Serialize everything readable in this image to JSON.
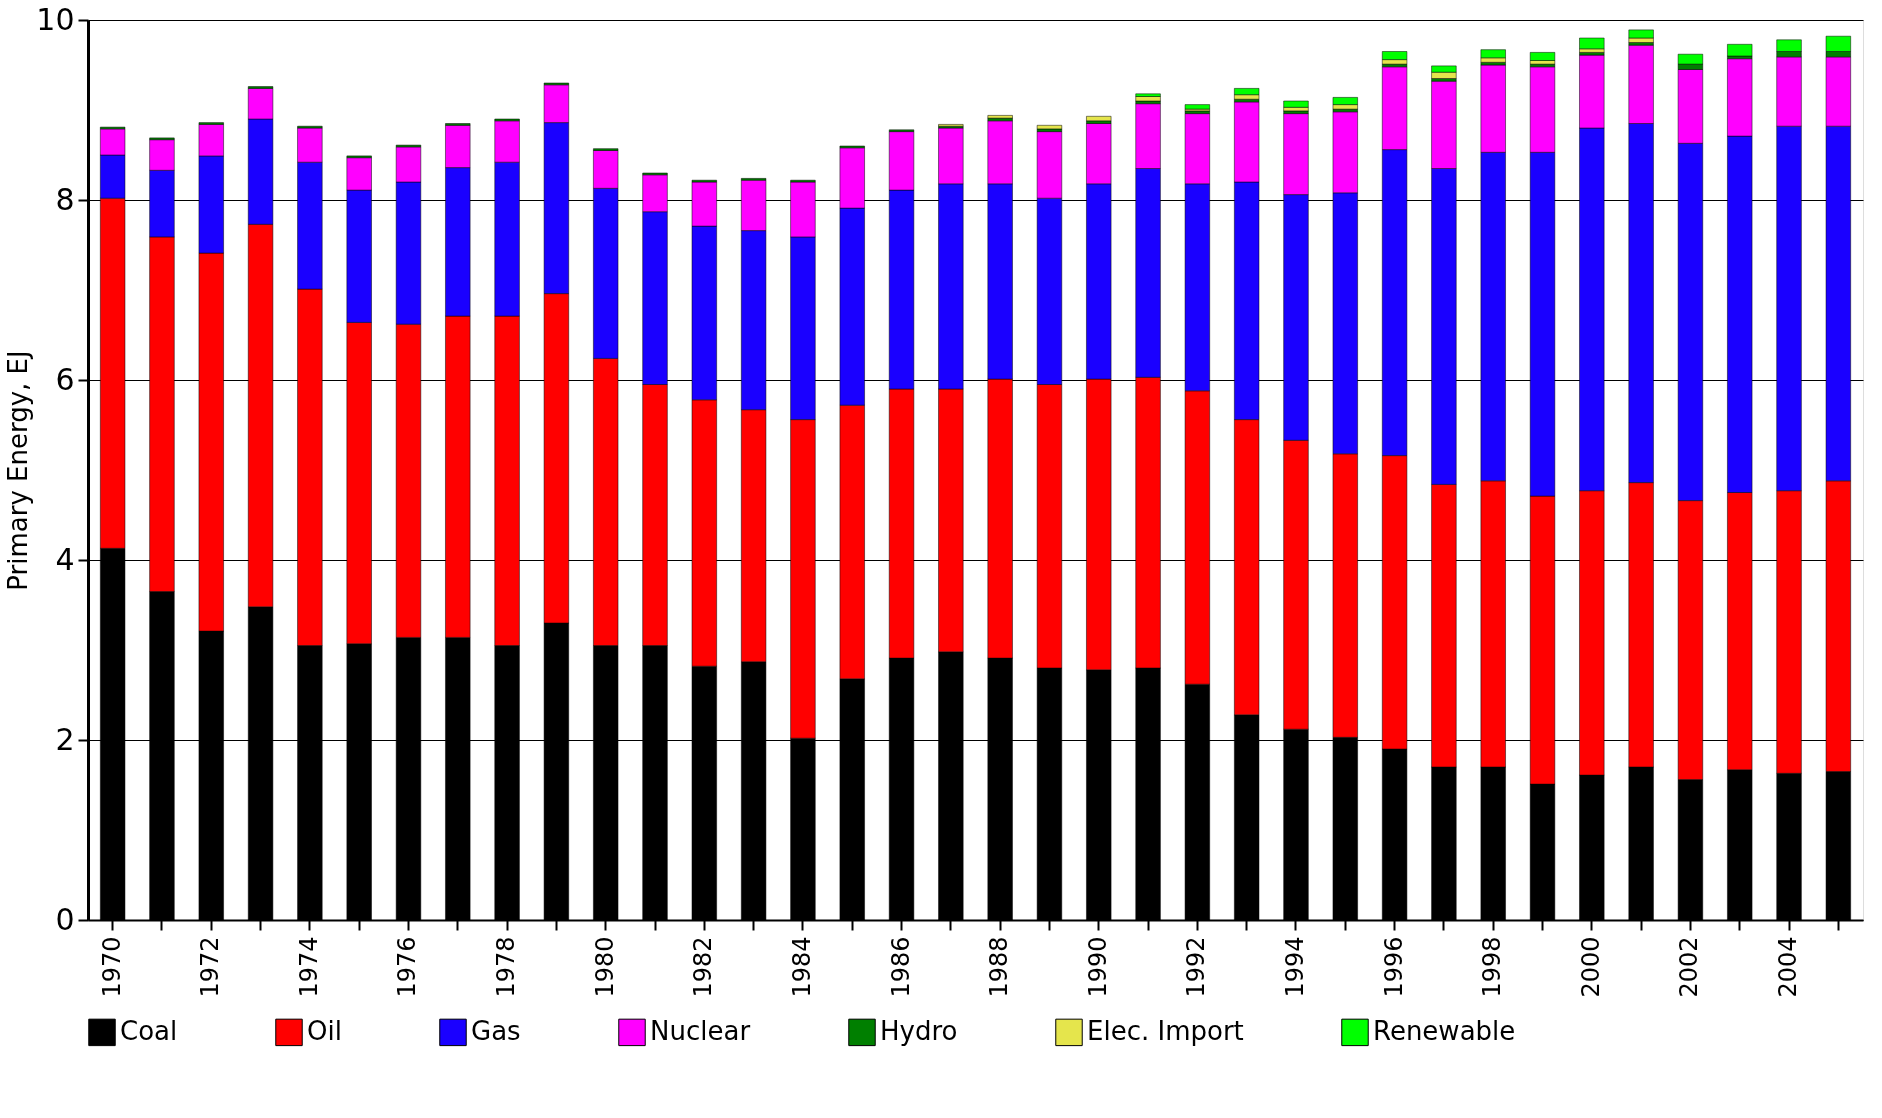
{
  "chart_data": {
    "type": "bar",
    "stacked": true,
    "ylabel": "Primary Energy, EJ",
    "categories": [
      "1970",
      null,
      "1972",
      null,
      "1974",
      null,
      "1976",
      null,
      "1978",
      null,
      "1980",
      null,
      "1982",
      null,
      "1984",
      null,
      "1986",
      null,
      "1988",
      null,
      "1990",
      null,
      "1992",
      null,
      "1994",
      null,
      "1996",
      null,
      "1998",
      null,
      "2000",
      null,
      "2002",
      null,
      "2004",
      null
    ],
    "ylim": [
      0,
      10
    ],
    "yticks": [
      0,
      2,
      4,
      6,
      8,
      10
    ],
    "grid": "y",
    "legend": "bottom",
    "series": [
      {
        "name": "Coal",
        "color": "#000000",
        "values": [
          4.13,
          3.65,
          3.21,
          3.48,
          3.05,
          3.07,
          3.14,
          3.14,
          3.05,
          3.3,
          3.05,
          3.05,
          2.82,
          2.87,
          2.02,
          2.68,
          2.91,
          2.98,
          2.91,
          2.8,
          2.78,
          2.8,
          2.62,
          2.28,
          2.12,
          2.03,
          1.9,
          1.7,
          1.7,
          1.51,
          1.61,
          1.7,
          1.56,
          1.67,
          1.63,
          1.65
        ]
      },
      {
        "name": "Oil",
        "color": "#ff0000",
        "values": [
          3.89,
          3.94,
          4.2,
          4.25,
          3.96,
          3.57,
          3.48,
          3.57,
          3.66,
          3.66,
          3.19,
          2.9,
          2.96,
          2.8,
          3.54,
          3.04,
          2.99,
          2.92,
          3.1,
          3.15,
          3.23,
          3.23,
          3.26,
          3.28,
          3.21,
          3.15,
          3.26,
          3.14,
          3.18,
          3.2,
          3.16,
          3.16,
          3.1,
          3.08,
          3.14,
          3.23
        ]
      },
      {
        "name": "Gas",
        "color": "#1a00ff",
        "values": [
          0.48,
          0.74,
          1.08,
          1.17,
          1.41,
          1.47,
          1.58,
          1.65,
          1.71,
          1.9,
          1.89,
          1.92,
          1.93,
          1.99,
          2.03,
          2.19,
          2.21,
          2.28,
          2.17,
          2.07,
          2.17,
          2.32,
          2.3,
          2.64,
          2.73,
          2.9,
          3.4,
          3.51,
          3.65,
          3.82,
          4.03,
          3.99,
          3.97,
          3.96,
          4.05,
          3.94
        ]
      },
      {
        "name": "Nuclear",
        "color": "#ff00ff",
        "values": [
          0.29,
          0.34,
          0.35,
          0.34,
          0.38,
          0.36,
          0.39,
          0.47,
          0.46,
          0.42,
          0.42,
          0.41,
          0.49,
          0.56,
          0.61,
          0.67,
          0.65,
          0.62,
          0.7,
          0.74,
          0.67,
          0.72,
          0.78,
          0.89,
          0.9,
          0.9,
          0.92,
          0.97,
          0.97,
          0.95,
          0.81,
          0.87,
          0.82,
          0.86,
          0.77,
          0.77
        ]
      },
      {
        "name": "Hydro",
        "color": "#007f00",
        "values": [
          0.02,
          0.02,
          0.02,
          0.02,
          0.02,
          0.02,
          0.02,
          0.02,
          0.02,
          0.02,
          0.02,
          0.02,
          0.02,
          0.02,
          0.02,
          0.02,
          0.02,
          0.02,
          0.03,
          0.03,
          0.03,
          0.03,
          0.03,
          0.03,
          0.03,
          0.03,
          0.03,
          0.03,
          0.03,
          0.03,
          0.03,
          0.03,
          0.06,
          0.03,
          0.06,
          0.06
        ]
      },
      {
        "name": "Elec. Import",
        "color": "#e5e54c",
        "values": [
          0,
          0,
          0,
          0,
          0,
          0,
          0,
          0,
          0,
          0,
          0,
          0,
          0,
          0,
          0,
          0,
          0,
          0.02,
          0.03,
          0.04,
          0.05,
          0.05,
          0.02,
          0.05,
          0.04,
          0.05,
          0.05,
          0.07,
          0.05,
          0.04,
          0.04,
          0.05,
          0,
          0,
          0,
          0
        ]
      },
      {
        "name": "Renewable",
        "color": "#00ff00",
        "values": [
          0,
          0,
          0,
          0,
          0,
          0,
          0,
          0,
          0,
          0,
          0,
          0,
          0,
          0,
          0,
          0,
          0,
          0,
          0,
          0,
          0,
          0.03,
          0.05,
          0.07,
          0.07,
          0.08,
          0.09,
          0.07,
          0.09,
          0.09,
          0.12,
          0.09,
          0.11,
          0.13,
          0.13,
          0.17
        ]
      }
    ]
  }
}
